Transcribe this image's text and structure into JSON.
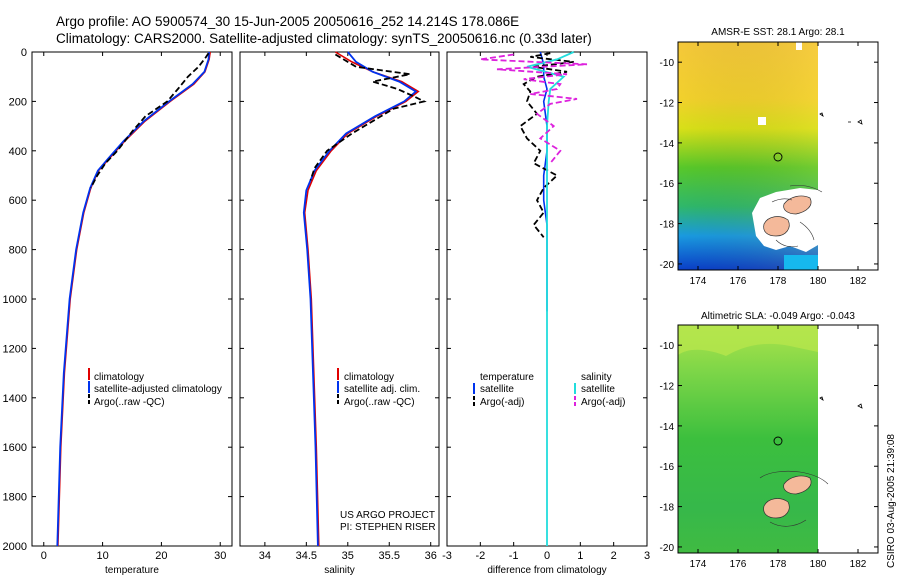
{
  "header": {
    "title_line1": "Argo profile: AO 5900574_30 15-Jun-2005 20050616_252 14.214S 178.086E",
    "title_line2": "Climatology: CARS2000. Satellite-adjusted climatology: synTS_20050616.nc (0.33d later)"
  },
  "colors": {
    "climatology": "#e00000",
    "satellite": "#0033ee",
    "argo": "#000000",
    "sat_salinity": "#22dddd",
    "argo_salinity": "#dd22dd"
  },
  "chart_data": [
    {
      "type": "line",
      "id": "temperature",
      "xlabel": "temperature",
      "ylabel": "",
      "xlim": [
        -2,
        32
      ],
      "ylim": [
        2000,
        0
      ],
      "xticks": [
        0,
        10,
        20,
        30
      ],
      "yticks": [
        0,
        200,
        400,
        600,
        800,
        1000,
        1200,
        1400,
        1600,
        1800,
        2000
      ],
      "legend": [
        "climatology",
        "satellite-adjusted climatology",
        "Argo(..raw -QC)"
      ],
      "series": [
        {
          "name": "climatology",
          "depth": [
            0,
            30,
            80,
            130,
            200,
            280,
            360,
            430,
            480,
            550,
            650,
            800,
            1000,
            1300,
            1600,
            2000
          ],
          "values": [
            28.3,
            28.1,
            27.4,
            25.5,
            21.5,
            17.2,
            13.8,
            11.2,
            9.3,
            8.0,
            6.8,
            5.6,
            4.5,
            3.5,
            2.9,
            2.4
          ]
        },
        {
          "name": "satellite-adjusted climatology",
          "depth": [
            0,
            30,
            80,
            130,
            200,
            280,
            360,
            430,
            480,
            550,
            650,
            800,
            1000,
            1300,
            1600,
            2000
          ],
          "values": [
            28.1,
            28.0,
            27.3,
            25.3,
            21.3,
            17.0,
            13.6,
            11.0,
            9.2,
            7.9,
            6.7,
            5.5,
            4.4,
            3.4,
            2.8,
            2.3
          ]
        },
        {
          "name": "Argo",
          "depth": [
            5,
            20,
            60,
            100,
            150,
            200,
            260,
            320,
            400,
            450,
            500,
            550
          ],
          "values": [
            28.0,
            27.6,
            26.3,
            24.5,
            22.8,
            21.0,
            17.3,
            15.1,
            12.5,
            10.5,
            9.1,
            8.0
          ]
        }
      ]
    },
    {
      "type": "line",
      "id": "salinity",
      "xlabel": "salinity",
      "ylabel": "",
      "xlim": [
        33.7,
        36.1
      ],
      "ylim": [
        2000,
        0
      ],
      "xticks": [
        34,
        34.5,
        35,
        35.5,
        36
      ],
      "yticks": [
        0,
        200,
        400,
        600,
        800,
        1000,
        1200,
        1400,
        1600,
        1800,
        2000
      ],
      "legend": [
        "climatology",
        "satellite adj. clim.",
        "Argo(..raw -QC)"
      ],
      "annotation": [
        "US ARGO PROJECT",
        "PI: STEPHEN RISER"
      ],
      "series": [
        {
          "name": "climatology",
          "depth": [
            0,
            40,
            80,
            120,
            160,
            200,
            260,
            330,
            400,
            480,
            560,
            650,
            800,
            1000,
            1300,
            1600,
            2000
          ],
          "values": [
            34.85,
            35.05,
            35.3,
            35.65,
            35.85,
            35.7,
            35.35,
            35.0,
            34.8,
            34.62,
            34.52,
            34.48,
            34.52,
            34.56,
            34.59,
            34.62,
            34.65
          ]
        },
        {
          "name": "satellite adj. clim.",
          "depth": [
            0,
            40,
            80,
            120,
            160,
            200,
            260,
            330,
            400,
            480,
            560,
            650,
            800,
            1000,
            1300,
            1600,
            2000
          ],
          "values": [
            35.0,
            35.1,
            35.3,
            35.62,
            35.82,
            35.68,
            35.33,
            34.98,
            34.78,
            34.6,
            34.5,
            34.47,
            34.51,
            34.55,
            34.58,
            34.61,
            34.64
          ]
        },
        {
          "name": "Argo",
          "depth": [
            10,
            30,
            60,
            90,
            120,
            150,
            180,
            200,
            230,
            280,
            330,
            400,
            470,
            520
          ],
          "values": [
            34.85,
            34.95,
            35.1,
            35.75,
            35.3,
            35.6,
            35.8,
            35.92,
            35.55,
            35.3,
            35.05,
            34.75,
            34.6,
            34.55
          ]
        }
      ]
    },
    {
      "type": "line",
      "id": "difference",
      "xlabel": "difference from climatology",
      "ylabel": "",
      "xlim": [
        -3,
        3
      ],
      "ylim": [
        2000,
        0
      ],
      "xticks": [
        -3,
        -2,
        -1,
        0,
        1,
        2,
        3
      ],
      "yticks": [
        0,
        200,
        400,
        600,
        800,
        1000,
        1200,
        1400,
        1600,
        1800,
        2000
      ],
      "legend_left_title": "temperature",
      "legend_right_title": "salinity",
      "legend_left": [
        "satellite",
        "Argo(-adj)"
      ],
      "legend_right": [
        "satellite",
        "Argo(-adj)"
      ],
      "series": [
        {
          "name": "temperature satellite",
          "depth": [
            0,
            50,
            100,
            150,
            200,
            300,
            400,
            500,
            600,
            700,
            800,
            900,
            1000,
            1050
          ],
          "values": [
            -0.2,
            -0.1,
            -0.1,
            0.0,
            -0.1,
            0.0,
            0.0,
            -0.1,
            -0.1,
            0.0,
            0.0,
            0.0,
            0.0,
            0.0
          ]
        },
        {
          "name": "temperature Argo(-adj)",
          "depth": [
            5,
            20,
            40,
            60,
            80,
            100,
            130,
            160,
            200,
            250,
            300,
            350,
            400,
            450,
            500,
            550,
            600,
            650,
            700,
            750
          ],
          "values": [
            0.1,
            -0.5,
            0.8,
            -0.4,
            0.6,
            -0.3,
            -0.7,
            -0.5,
            -0.6,
            -0.3,
            -0.8,
            -0.6,
            -0.2,
            -0.4,
            0.3,
            -0.1,
            -0.3,
            -0.1,
            -0.4,
            -0.1
          ]
        },
        {
          "name": "salinity satellite",
          "depth": [
            0,
            30,
            60,
            100,
            150,
            200,
            300,
            400,
            500,
            600,
            800,
            1000,
            1500,
            2000
          ],
          "values": [
            0.8,
            0.3,
            -0.6,
            0.5,
            0.1,
            0.05,
            0.0,
            0.0,
            0.0,
            0.0,
            0.0,
            0.0,
            0.0,
            0.0
          ]
        },
        {
          "name": "salinity Argo(-adj)",
          "depth": [
            10,
            30,
            50,
            70,
            90,
            110,
            130,
            150,
            170,
            190,
            210,
            250,
            300,
            350,
            400,
            450
          ],
          "values": [
            -1.0,
            -2.0,
            1.2,
            -1.5,
            0.6,
            -0.7,
            0.4,
            0.3,
            -0.5,
            0.9,
            0.1,
            -0.3,
            0.2,
            -0.2,
            0.4,
            0.1
          ]
        }
      ]
    }
  ],
  "maps": [
    {
      "id": "sst",
      "title": "AMSR-E SST: 28.1 Argo: 28.1",
      "yticks": [
        "-10",
        "-12",
        "-14",
        "-16",
        "-18",
        "-20"
      ],
      "xticks": [
        "174",
        "176",
        "178",
        "180",
        "182"
      ],
      "lat": [
        -9,
        -20.3
      ],
      "lon": [
        173,
        183
      ]
    },
    {
      "id": "sla",
      "title": "Altimetric SLA: -0.049 Argo: -0.043",
      "yticks": [
        "-10",
        "-12",
        "-14",
        "-16",
        "-18",
        "-20"
      ],
      "xticks": [
        "174",
        "176",
        "178",
        "180",
        "182"
      ],
      "lat": [
        -9,
        -20.3
      ],
      "lon": [
        173,
        183
      ]
    }
  ],
  "side_label": "CSIRO 03-Aug-2005 21:39:08"
}
